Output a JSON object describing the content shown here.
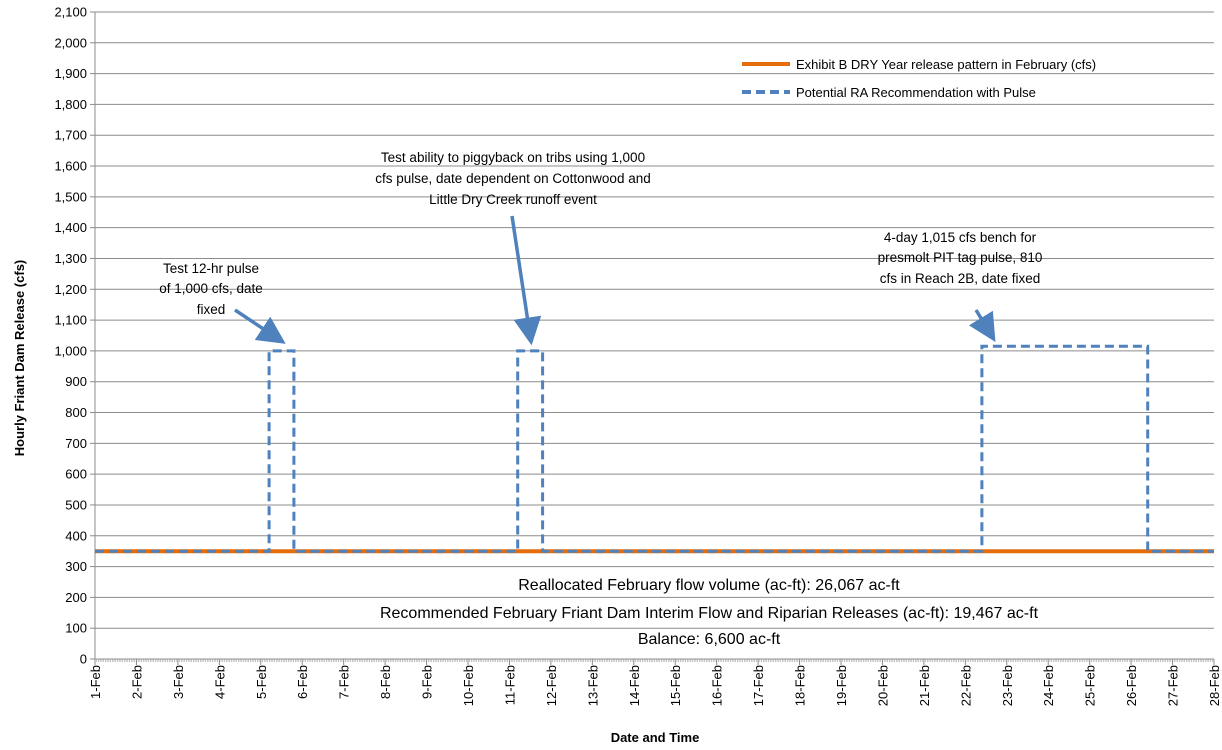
{
  "chart_data": {
    "type": "line",
    "xlabel": "Date and Time",
    "ylabel": "Hourly Friant Dam Release (cfs)",
    "ylim": [
      0,
      2100
    ],
    "y_ticks": [
      "0",
      "100",
      "200",
      "300",
      "400",
      "500",
      "600",
      "700",
      "800",
      "900",
      "1,000",
      "1,100",
      "1,200",
      "1,300",
      "1,400",
      "1,500",
      "1,600",
      "1,700",
      "1,800",
      "1,900",
      "2,000",
      "2,100"
    ],
    "x_ticks": [
      "1-Feb",
      "2-Feb",
      "3-Feb",
      "4-Feb",
      "5-Feb",
      "6-Feb",
      "7-Feb",
      "8-Feb",
      "9-Feb",
      "10-Feb",
      "11-Feb",
      "12-Feb",
      "13-Feb",
      "14-Feb",
      "15-Feb",
      "16-Feb",
      "17-Feb",
      "18-Feb",
      "19-Feb",
      "20-Feb",
      "21-Feb",
      "22-Feb",
      "23-Feb",
      "24-Feb",
      "25-Feb",
      "26-Feb",
      "27-Feb",
      "28-Feb"
    ],
    "grid": true,
    "legend_position": "top-right",
    "series": [
      {
        "name": "Exhibit B DRY Year release pattern in February (cfs)",
        "color": "#E46C0A",
        "style": "solid",
        "x": [
          "1-Feb",
          "28-Feb"
        ],
        "y": [
          350,
          350
        ]
      },
      {
        "name": "Potential RA Recommendation with Pulse",
        "color": "#4F81BD",
        "style": "dashed",
        "x": [
          "1-Feb",
          "5.2-Feb",
          "5.2-Feb",
          "5.8-Feb",
          "5.8-Feb",
          "11.2-Feb",
          "11.2-Feb",
          "11.8-Feb",
          "11.8-Feb",
          "22.4-Feb",
          "22.4-Feb",
          "26.4-Feb",
          "26.4-Feb",
          "28-Feb"
        ],
        "y": [
          350,
          350,
          1000,
          1000,
          350,
          350,
          1000,
          1000,
          350,
          350,
          1015,
          1015,
          350,
          350
        ]
      }
    ],
    "annotations": [
      {
        "lines": [
          "Test 12-hr pulse",
          "of 1,000 cfs, date",
          "fixed"
        ]
      },
      {
        "lines": [
          "Test ability to piggyback on tribs using 1,000",
          "cfs pulse, date dependent on Cottonwood and",
          "Little Dry Creek runoff event"
        ]
      },
      {
        "lines": [
          "4-day 1,015 cfs bench for",
          "presmolt PIT tag pulse, 810",
          "cfs in Reach 2B, date fixed"
        ]
      }
    ],
    "notes": [
      "Reallocated February flow volume (ac-ft):  26,067 ac-ft",
      "Recommended February Friant Dam Interim Flow and Riparian Releases (ac-ft):  19,467 ac-ft",
      "Balance:  6,600 ac-ft"
    ]
  }
}
